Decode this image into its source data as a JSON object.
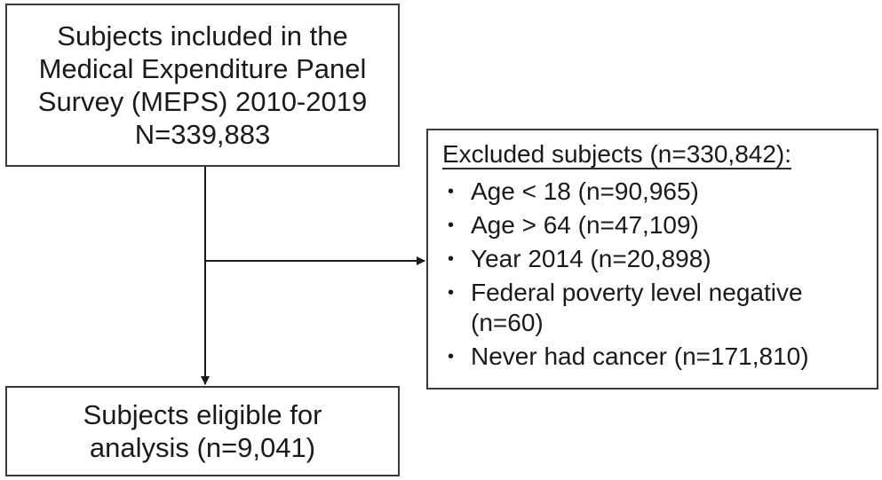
{
  "top_box": {
    "lines": [
      "Subjects included in the",
      "Medical Expenditure Panel",
      "Survey (MEPS) 2010-2019",
      "N=339,883"
    ]
  },
  "excluded_box": {
    "title": "Excluded subjects (n=330,842):",
    "items": [
      "Age < 18 (n=90,965)",
      "Age > 64 (n=47,109)",
      "Year 2014 (n=20,898)",
      "Federal poverty level negative (n=60)",
      "Never had cancer (n=171,810)"
    ]
  },
  "bottom_box": {
    "lines": [
      "Subjects eligible for",
      "analysis (n=9,041)"
    ]
  },
  "colors": {
    "border": "#3a3a3a",
    "text": "#1a1a1a"
  }
}
